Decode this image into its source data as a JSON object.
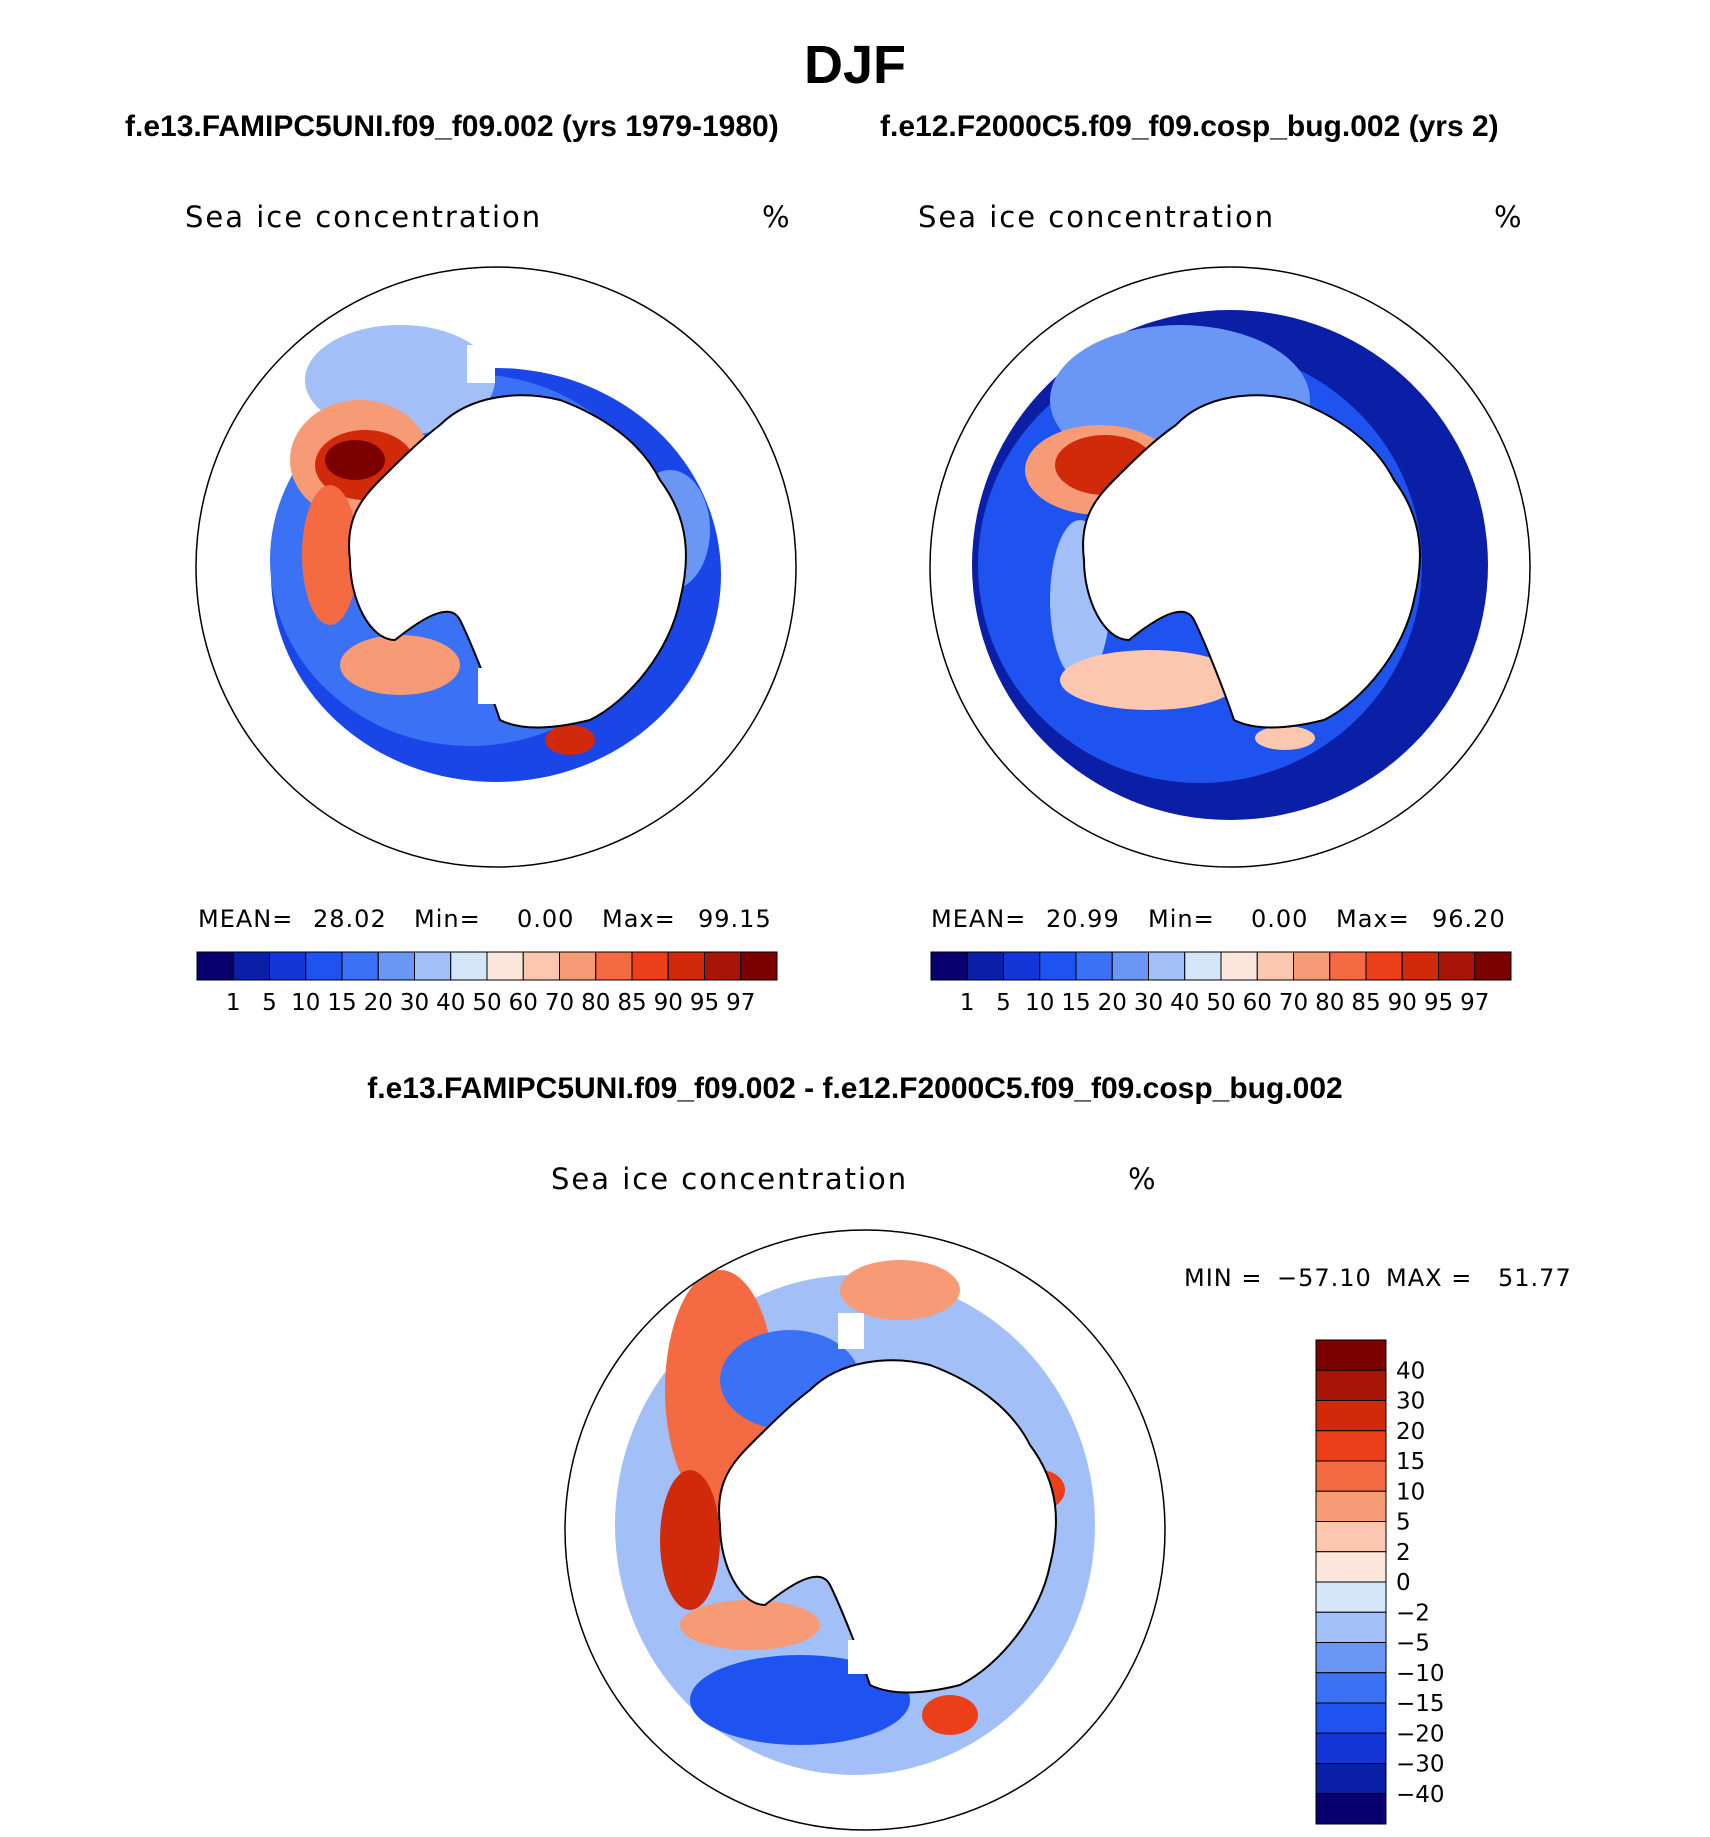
{
  "title": "DJF",
  "variable_label": "Sea ice concentration",
  "unit": "%",
  "panels": {
    "left": {
      "subtitle": "f.e13.FAMIPC5UNI.f09_f09.002 (yrs 1979-1980)",
      "mean_label": "MEAN=",
      "mean_value": "28.02",
      "min_label": "Min=",
      "min_value": "0.00",
      "max_label": "Max=",
      "max_value": "99.15"
    },
    "right": {
      "subtitle": "f.e12.F2000C5.f09_f09.cosp_bug.002 (yrs 2)",
      "mean_label": "MEAN=",
      "mean_value": "20.99",
      "min_label": "Min=",
      "min_value": "0.00",
      "max_label": "Max=",
      "max_value": "96.20"
    },
    "diff": {
      "subtitle": "f.e13.FAMIPC5UNI.f09_f09.002 - f.e12.F2000C5.f09_f09.cosp_bug.002",
      "min_label": "MIN =",
      "min_value": "−57.10",
      "max_label": "MAX =",
      "max_value": "51.77"
    }
  },
  "chart_data": [
    {
      "type": "heatmap",
      "title": "Sea ice concentration",
      "case": "f.e13.FAMIPC5UNI.f09_f09.002 (yrs 1979-1980)",
      "projection": "south-polar-stereographic",
      "unit": "%",
      "mean": 28.02,
      "min": 0.0,
      "max": 99.15,
      "colorbar_levels": [
        "1",
        "5",
        "10",
        "15",
        "20",
        "30",
        "40",
        "50",
        "60",
        "70",
        "80",
        "85",
        "90",
        "95",
        "97"
      ]
    },
    {
      "type": "heatmap",
      "title": "Sea ice concentration",
      "case": "f.e12.F2000C5.f09_f09.cosp_bug.002 (yrs 2)",
      "projection": "south-polar-stereographic",
      "unit": "%",
      "mean": 20.99,
      "min": 0.0,
      "max": 96.2,
      "colorbar_levels": [
        "1",
        "5",
        "10",
        "15",
        "20",
        "30",
        "40",
        "50",
        "60",
        "70",
        "80",
        "85",
        "90",
        "95",
        "97"
      ]
    },
    {
      "type": "heatmap",
      "title": "Sea ice concentration",
      "case": "f.e13.FAMIPC5UNI.f09_f09.002 - f.e12.F2000C5.f09_f09.cosp_bug.002",
      "projection": "south-polar-stereographic",
      "unit": "%",
      "min": -57.1,
      "max": 51.77,
      "colorbar_levels": [
        "40",
        "30",
        "20",
        "15",
        "10",
        "5",
        "2",
        "0",
        "−2",
        "−5",
        "−10",
        "−15",
        "−20",
        "−30",
        "−40"
      ]
    }
  ],
  "colors": {
    "abs_scale": [
      "#08006e",
      "#0b1ea6",
      "#1436d6",
      "#1f53f0",
      "#3b71f5",
      "#6a97f5",
      "#a2bff7",
      "#d6e6fa",
      "#fde7dc",
      "#fbc7ae",
      "#f79a76",
      "#f46a43",
      "#ea3f19",
      "#d12a0a",
      "#a81506",
      "#7b0000"
    ],
    "diff_scale": [
      "#7b0000",
      "#a81506",
      "#d12a0a",
      "#ea3f19",
      "#f46a43",
      "#f79a76",
      "#fbc7ae",
      "#fde7dc",
      "#d6e6fa",
      "#a2bff7",
      "#6a97f5",
      "#3b71f5",
      "#1f53f0",
      "#1436d6",
      "#0b1ea6",
      "#08006e"
    ]
  }
}
